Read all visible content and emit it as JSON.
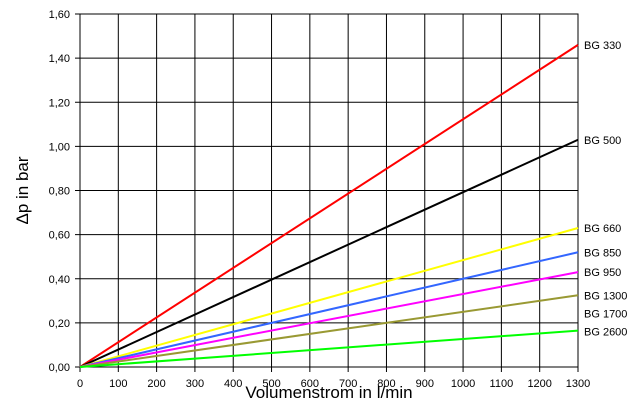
{
  "chart_data": {
    "type": "line",
    "title": "",
    "xlabel": "Volumenstrom  in  l/min",
    "ylabel": "Δp in bar",
    "xlim": [
      0,
      1300
    ],
    "ylim": [
      0,
      1.6
    ],
    "x_ticks": [
      "0",
      "100",
      "200",
      "300",
      "400",
      "500",
      "600",
      "700",
      "800",
      "900",
      "1000",
      "1100",
      "1200",
      "1300"
    ],
    "y_ticks": [
      "0,00",
      "0,20",
      "0,40",
      "0,60",
      "0,80",
      "1,00",
      "1,20",
      "1,40",
      "1,60"
    ],
    "grid": true,
    "legend_placement": "right of each line end",
    "series": [
      {
        "name": "BG 330",
        "color": "#ff0000",
        "x": [
          0,
          1300
        ],
        "y": [
          0,
          1.46
        ]
      },
      {
        "name": "BG 500",
        "color": "#000000",
        "x": [
          0,
          1300
        ],
        "y": [
          0,
          1.03
        ]
      },
      {
        "name": "BG 660",
        "color": "#ffff00",
        "x": [
          0,
          1300
        ],
        "y": [
          0,
          0.63
        ]
      },
      {
        "name": "BG 850",
        "color": "#3366ff",
        "x": [
          0,
          1300
        ],
        "y": [
          0,
          0.52
        ]
      },
      {
        "name": "BG 950",
        "color": "#ff00ff",
        "x": [
          0,
          1300
        ],
        "y": [
          0,
          0.43
        ]
      },
      {
        "name": "BG 1300",
        "color": "#999933",
        "x": [
          0,
          1300
        ],
        "y": [
          0,
          0.325
        ]
      },
      {
        "name": "BG 1700",
        "color": "#000000",
        "x": [],
        "y": []
      },
      {
        "name": "BG 2600",
        "color": "#00ff00",
        "x": [
          0,
          1300
        ],
        "y": [
          0,
          0.165
        ]
      }
    ]
  }
}
